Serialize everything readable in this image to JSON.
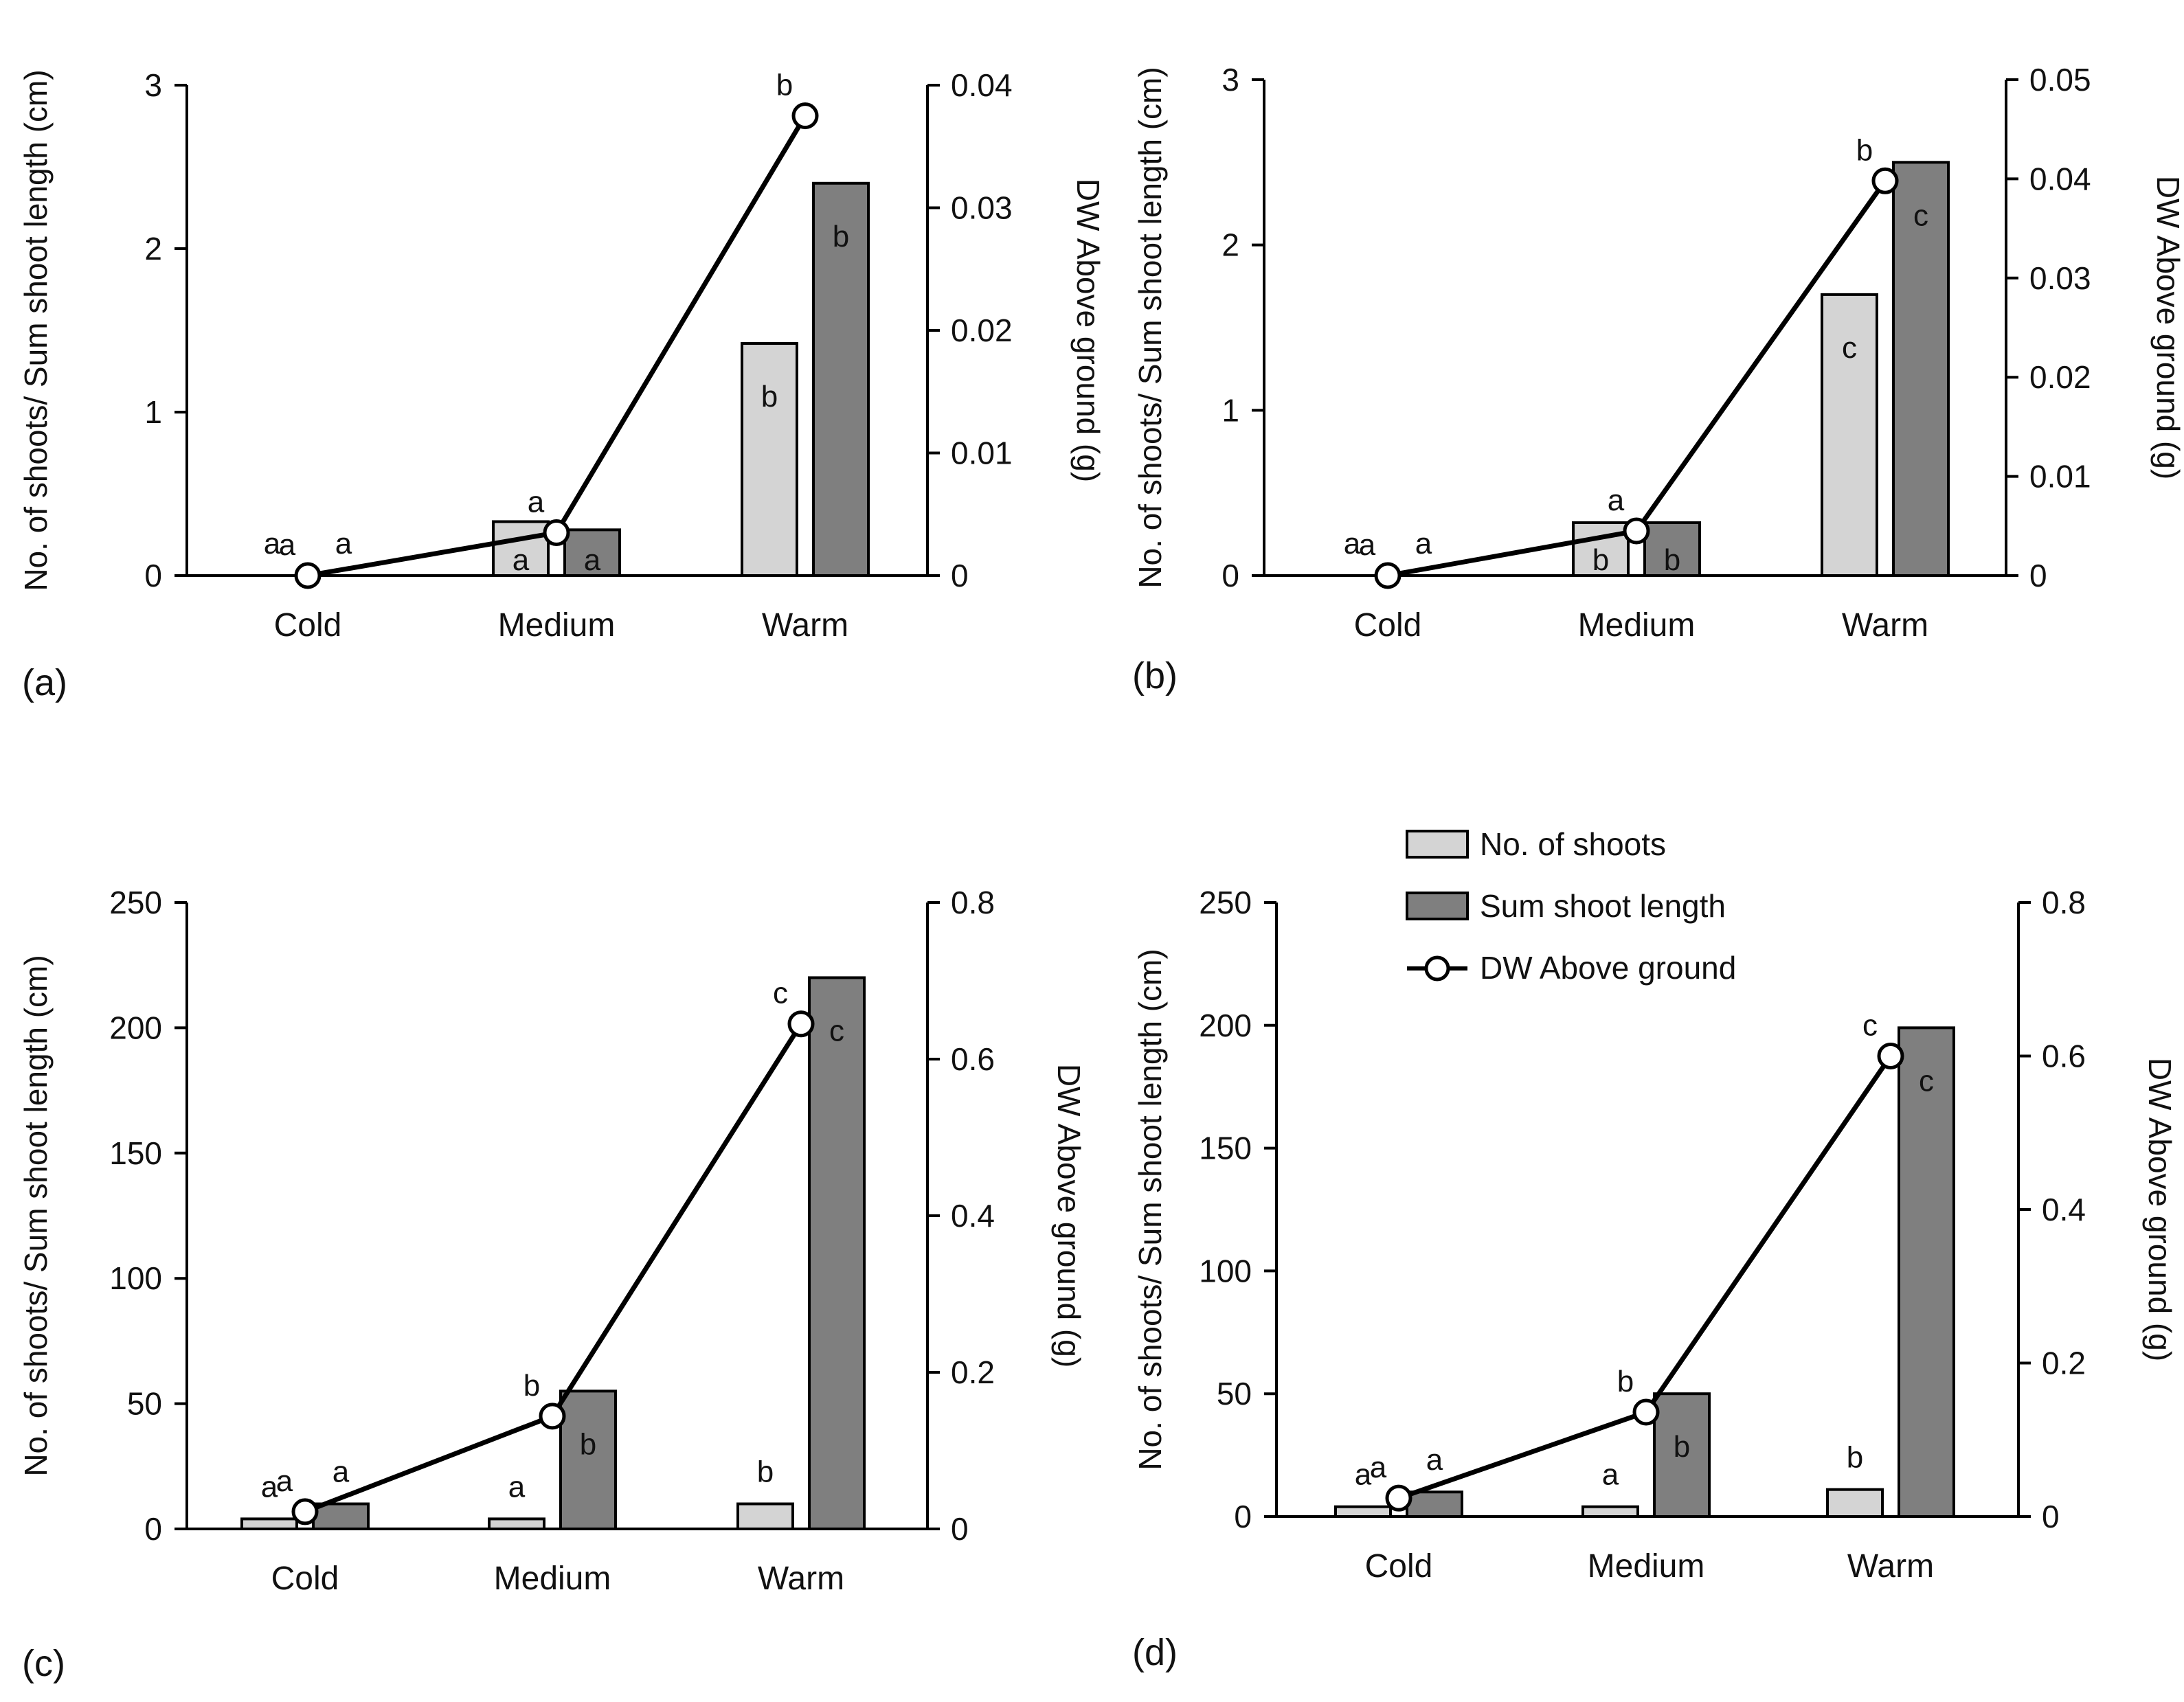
{
  "legend": {
    "items": [
      {
        "label": "No. of shoots",
        "kind": "bar",
        "color": "#d4d4d4"
      },
      {
        "label": "Sum shoot length",
        "kind": "bar",
        "color": "#7f7f7f"
      },
      {
        "label": "DW Above ground",
        "kind": "line",
        "color": "#000000"
      }
    ]
  },
  "chart_data": [
    {
      "panel": "(a)",
      "type": "bar+line",
      "categories": [
        "Cold",
        "Medium",
        "Warm"
      ],
      "ylabel": "No. of shoots/ Sum shoot length (cm)",
      "y2label": "DW Above ground (g)",
      "ylim": [
        0,
        3
      ],
      "yticks": [
        "0",
        "1",
        "2",
        "3"
      ],
      "y2lim": [
        0,
        0.04
      ],
      "y2ticks": [
        "0",
        "0.01",
        "0.02",
        "0.03",
        "0.04"
      ],
      "series": [
        {
          "name": "No. of shoots",
          "type": "bar",
          "axis": "left",
          "values": [
            0,
            0.33,
            1.42
          ],
          "letters": [
            "a",
            "a",
            "b"
          ]
        },
        {
          "name": "Sum shoot length",
          "type": "bar",
          "axis": "left",
          "values": [
            0,
            0.28,
            2.4
          ],
          "letters": [
            "a",
            "a",
            "b"
          ]
        },
        {
          "name": "DW Above ground",
          "type": "line",
          "axis": "right",
          "values": [
            0,
            0.0035,
            0.0375
          ],
          "letters": [
            "a",
            "a",
            "b"
          ]
        }
      ]
    },
    {
      "panel": "(b)",
      "type": "bar+line",
      "categories": [
        "Cold",
        "Medium",
        "Warm"
      ],
      "ylabel": "No. of shoots/ Sum shoot length (cm)",
      "y2label": "DW Above ground (g)",
      "ylim": [
        0,
        3
      ],
      "yticks": [
        "0",
        "1",
        "2",
        "3"
      ],
      "y2lim": [
        0,
        0.05
      ],
      "y2ticks": [
        "0",
        "0.01",
        "0.02",
        "0.03",
        "0.04",
        "0.05"
      ],
      "series": [
        {
          "name": "No. of shoots",
          "type": "bar",
          "axis": "left",
          "values": [
            0,
            0.32,
            1.7
          ],
          "letters": [
            "a",
            "b",
            "c"
          ]
        },
        {
          "name": "Sum shoot length",
          "type": "bar",
          "axis": "left",
          "values": [
            0,
            0.32,
            2.5
          ],
          "letters": [
            "a",
            "b",
            "c"
          ]
        },
        {
          "name": "DW Above ground",
          "type": "line",
          "axis": "right",
          "values": [
            0,
            0.0045,
            0.0398
          ],
          "letters": [
            "a",
            "a",
            "b"
          ]
        }
      ]
    },
    {
      "panel": "(c)",
      "type": "bar+line",
      "categories": [
        "Cold",
        "Medium",
        "Warm"
      ],
      "ylabel": "No. of shoots/ Sum shoot length (cm)",
      "y2label": "DW Above ground (g)",
      "ylim": [
        0,
        250
      ],
      "yticks": [
        "0",
        "50",
        "100",
        "150",
        "200",
        "250"
      ],
      "y2lim": [
        0,
        0.8
      ],
      "y2ticks": [
        "0",
        "0.2",
        "0.4",
        "0.6",
        "0.8"
      ],
      "series": [
        {
          "name": "No. of shoots",
          "type": "bar",
          "axis": "left",
          "values": [
            4,
            4,
            10
          ],
          "letters": [
            "a",
            "a",
            "b"
          ]
        },
        {
          "name": "Sum shoot length",
          "type": "bar",
          "axis": "left",
          "values": [
            10,
            55,
            220
          ],
          "letters": [
            "a",
            "b",
            "c"
          ]
        },
        {
          "name": "DW Above ground",
          "type": "line",
          "axis": "right",
          "values": [
            0.022,
            0.144,
            0.645
          ],
          "letters": [
            "a",
            "b",
            "c"
          ]
        }
      ]
    },
    {
      "panel": "(d)",
      "type": "bar+line",
      "categories": [
        "Cold",
        "Medium",
        "Warm"
      ],
      "ylabel": "No. of shoots/ Sum shoot length (cm)",
      "y2label": "DW Above ground (g)",
      "ylim": [
        0,
        250
      ],
      "yticks": [
        "0",
        "50",
        "100",
        "150",
        "200",
        "250"
      ],
      "y2lim": [
        0,
        0.8
      ],
      "y2ticks": [
        "0",
        "0.2",
        "0.4",
        "0.6",
        "0.8"
      ],
      "series": [
        {
          "name": "No. of shoots",
          "type": "bar",
          "axis": "left",
          "values": [
            4,
            4,
            11
          ],
          "letters": [
            "a",
            "a",
            "b"
          ]
        },
        {
          "name": "Sum shoot length",
          "type": "bar",
          "axis": "left",
          "values": [
            10,
            50,
            199
          ],
          "letters": [
            "a",
            "b",
            "c"
          ]
        },
        {
          "name": "DW Above ground",
          "type": "line",
          "axis": "right",
          "values": [
            0.024,
            0.136,
            0.6
          ],
          "letters": [
            "a",
            "b",
            "c"
          ]
        }
      ]
    }
  ]
}
